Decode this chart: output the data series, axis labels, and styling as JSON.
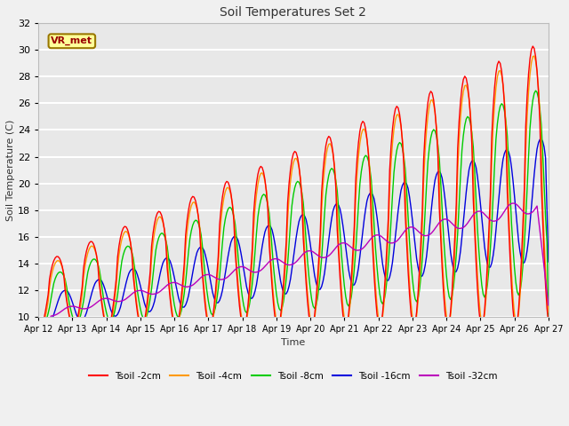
{
  "title": "Soil Temperatures Set 2",
  "xlabel": "Time",
  "ylabel": "Soil Temperature (C)",
  "ylim": [
    10,
    32
  ],
  "xlim": [
    0,
    360
  ],
  "fig_bg_color": "#f0f0f0",
  "plot_bg_color": "#e8e8e8",
  "grid_color": "#ffffff",
  "series": [
    {
      "label": "Tsoil -2cm",
      "color": "#ff0000"
    },
    {
      "label": "Tsoil -4cm",
      "color": "#ff9900"
    },
    {
      "label": "Tsoil -8cm",
      "color": "#00cc00"
    },
    {
      "label": "Tsoil -16cm",
      "color": "#0000dd"
    },
    {
      "label": "Tsoil -32cm",
      "color": "#bb00bb"
    }
  ],
  "xtick_labels": [
    "Apr 12",
    "Apr 13",
    "Apr 14",
    "Apr 15",
    "Apr 16",
    "Apr 17",
    "Apr 18",
    "Apr 19",
    "Apr 20",
    "Apr 21",
    "Apr 22",
    "Apr 23",
    "Apr 24",
    "Apr 25",
    "Apr 26",
    "Apr 27"
  ],
  "xtick_positions": [
    0,
    24,
    48,
    72,
    96,
    120,
    144,
    168,
    192,
    216,
    240,
    264,
    288,
    312,
    336,
    360
  ],
  "ytick_labels": [
    "10",
    "12",
    "14",
    "16",
    "18",
    "20",
    "22",
    "24",
    "26",
    "28",
    "30",
    "32"
  ],
  "ytick_positions": [
    10,
    12,
    14,
    16,
    18,
    20,
    22,
    24,
    26,
    28,
    30,
    32
  ],
  "annotation_text": "VR_met",
  "annotation_color": "#990000",
  "annotation_bg": "#ffff99",
  "annotation_border": "#997700"
}
